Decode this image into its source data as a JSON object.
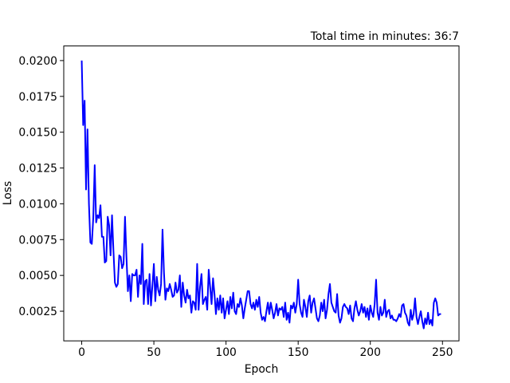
{
  "chart_data": {
    "type": "line",
    "title": "Total time in minutes: 36:7",
    "xlabel": "Epoch",
    "ylabel": "Loss",
    "color": "#0000ff",
    "x": [
      0,
      1,
      2,
      3,
      4,
      5,
      6,
      7,
      8,
      9,
      10,
      11,
      12,
      13,
      14,
      15,
      16,
      17,
      18,
      19,
      20,
      21,
      22,
      23,
      24,
      25,
      26,
      27,
      28,
      29,
      30,
      31,
      32,
      33,
      34,
      35,
      36,
      37,
      38,
      39,
      40,
      41,
      42,
      43,
      44,
      45,
      46,
      47,
      48,
      49,
      50,
      51,
      52,
      53,
      54,
      55,
      56,
      57,
      58,
      59,
      60,
      61,
      62,
      63,
      64,
      65,
      66,
      67,
      68,
      69,
      70,
      71,
      72,
      73,
      74,
      75,
      76,
      77,
      78,
      79,
      80,
      81,
      82,
      83,
      84,
      85,
      86,
      87,
      88,
      89,
      90,
      91,
      92,
      93,
      94,
      95,
      96,
      97,
      98,
      99,
      100,
      101,
      102,
      103,
      104,
      105,
      106,
      107,
      108,
      109,
      110,
      111,
      112,
      113,
      114,
      115,
      116,
      117,
      118,
      119,
      120,
      121,
      122,
      123,
      124,
      125,
      126,
      127,
      128,
      129,
      130,
      131,
      132,
      133,
      134,
      135,
      136,
      137,
      138,
      139,
      140,
      141,
      142,
      143,
      144,
      145,
      146,
      147,
      148,
      149,
      150,
      151,
      152,
      153,
      154,
      155,
      156,
      157,
      158,
      159,
      160,
      161,
      162,
      163,
      164,
      165,
      166,
      167,
      168,
      169,
      170,
      171,
      172,
      173,
      174,
      175,
      176,
      177,
      178,
      179,
      180,
      181,
      182,
      183,
      184,
      185,
      186,
      187,
      188,
      189,
      190,
      191,
      192,
      193,
      194,
      195,
      196,
      197,
      198,
      199,
      200,
      201,
      202,
      203,
      204,
      205,
      206,
      207,
      208,
      209,
      210,
      211,
      212,
      213,
      214,
      215,
      216,
      217,
      218,
      219,
      220,
      221,
      222,
      223,
      224,
      225,
      226,
      227,
      228,
      229,
      230,
      231,
      232,
      233,
      234,
      235,
      236,
      237,
      238,
      239,
      240,
      241,
      242,
      243,
      244,
      245,
      246,
      247,
      248,
      249
    ],
    "values": [
      0.02,
      0.0155,
      0.0172,
      0.011,
      0.0152,
      0.01,
      0.0073,
      0.0072,
      0.009,
      0.0127,
      0.0087,
      0.0092,
      0.009,
      0.0099,
      0.0077,
      0.0077,
      0.0059,
      0.006,
      0.0091,
      0.0085,
      0.0064,
      0.0092,
      0.0067,
      0.0045,
      0.0042,
      0.0044,
      0.0064,
      0.0063,
      0.0055,
      0.0058,
      0.0091,
      0.0063,
      0.0039,
      0.005,
      0.0032,
      0.0051,
      0.005,
      0.005,
      0.0054,
      0.0035,
      0.005,
      0.0044,
      0.0072,
      0.003,
      0.0046,
      0.0047,
      0.003,
      0.0051,
      0.0029,
      0.0043,
      0.0058,
      0.0032,
      0.0049,
      0.004,
      0.0036,
      0.0044,
      0.0082,
      0.0052,
      0.0033,
      0.0041,
      0.0039,
      0.0044,
      0.004,
      0.0035,
      0.0036,
      0.0045,
      0.0038,
      0.004,
      0.005,
      0.0028,
      0.0045,
      0.0036,
      0.0031,
      0.004,
      0.0034,
      0.0036,
      0.0024,
      0.0032,
      0.0031,
      0.0026,
      0.0058,
      0.0026,
      0.0042,
      0.0051,
      0.003,
      0.0033,
      0.0035,
      0.0026,
      0.0054,
      0.0042,
      0.003,
      0.0048,
      0.0037,
      0.0023,
      0.0034,
      0.0026,
      0.0036,
      0.0024,
      0.0034,
      0.002,
      0.0026,
      0.0032,
      0.0023,
      0.0035,
      0.0027,
      0.0038,
      0.0025,
      0.0023,
      0.003,
      0.0028,
      0.0034,
      0.0029,
      0.002,
      0.0027,
      0.0033,
      0.0039,
      0.0039,
      0.003,
      0.0027,
      0.0031,
      0.0026,
      0.0033,
      0.0028,
      0.0035,
      0.0024,
      0.0019,
      0.0021,
      0.0018,
      0.0025,
      0.0031,
      0.0023,
      0.0031,
      0.0026,
      0.002,
      0.0024,
      0.003,
      0.0022,
      0.0027,
      0.0026,
      0.0028,
      0.0021,
      0.0031,
      0.0019,
      0.0024,
      0.0017,
      0.0029,
      0.0027,
      0.0031,
      0.0024,
      0.003,
      0.0047,
      0.003,
      0.0024,
      0.0021,
      0.0033,
      0.0028,
      0.0021,
      0.0032,
      0.0036,
      0.0024,
      0.0031,
      0.0034,
      0.0027,
      0.002,
      0.0018,
      0.0022,
      0.0031,
      0.0025,
      0.0033,
      0.002,
      0.0026,
      0.0037,
      0.0044,
      0.0031,
      0.0028,
      0.0025,
      0.0024,
      0.0037,
      0.0022,
      0.0017,
      0.002,
      0.0028,
      0.003,
      0.0028,
      0.0027,
      0.0023,
      0.0029,
      0.002,
      0.0018,
      0.0027,
      0.0032,
      0.0026,
      0.0022,
      0.0025,
      0.003,
      0.0024,
      0.0028,
      0.0021,
      0.0027,
      0.0019,
      0.0029,
      0.0024,
      0.0021,
      0.003,
      0.0047,
      0.0024,
      0.0019,
      0.0028,
      0.0022,
      0.0024,
      0.0033,
      0.0021,
      0.0025,
      0.0026,
      0.002,
      0.0022,
      0.0019,
      0.0019,
      0.0018,
      0.002,
      0.0023,
      0.0021,
      0.0029,
      0.003,
      0.0024,
      0.0022,
      0.0017,
      0.0015,
      0.0026,
      0.0019,
      0.0023,
      0.0034,
      0.0021,
      0.0016,
      0.0021,
      0.0025,
      0.0018,
      0.0013,
      0.002,
      0.0016,
      0.0024,
      0.0016,
      0.0019,
      0.0015,
      0.0031,
      0.0034,
      0.0031,
      0.0022,
      0.0023,
      0.0023
    ],
    "xlim": [
      -12.45,
      261.45
    ],
    "xticks": [
      0,
      50,
      100,
      150,
      200,
      250
    ],
    "ylim": [
      0.00043,
      0.02102
    ],
    "yticks": [
      {
        "value": 0.0025,
        "label": "0.0025"
      },
      {
        "value": 0.005,
        "label": "0.0050"
      },
      {
        "value": 0.0075,
        "label": "0.0075"
      },
      {
        "value": 0.01,
        "label": "0.0100"
      },
      {
        "value": 0.0125,
        "label": "0.0125"
      },
      {
        "value": 0.015,
        "label": "0.0150"
      },
      {
        "value": 0.0175,
        "label": "0.0175"
      },
      {
        "value": 0.02,
        "label": "0.0200"
      }
    ]
  }
}
